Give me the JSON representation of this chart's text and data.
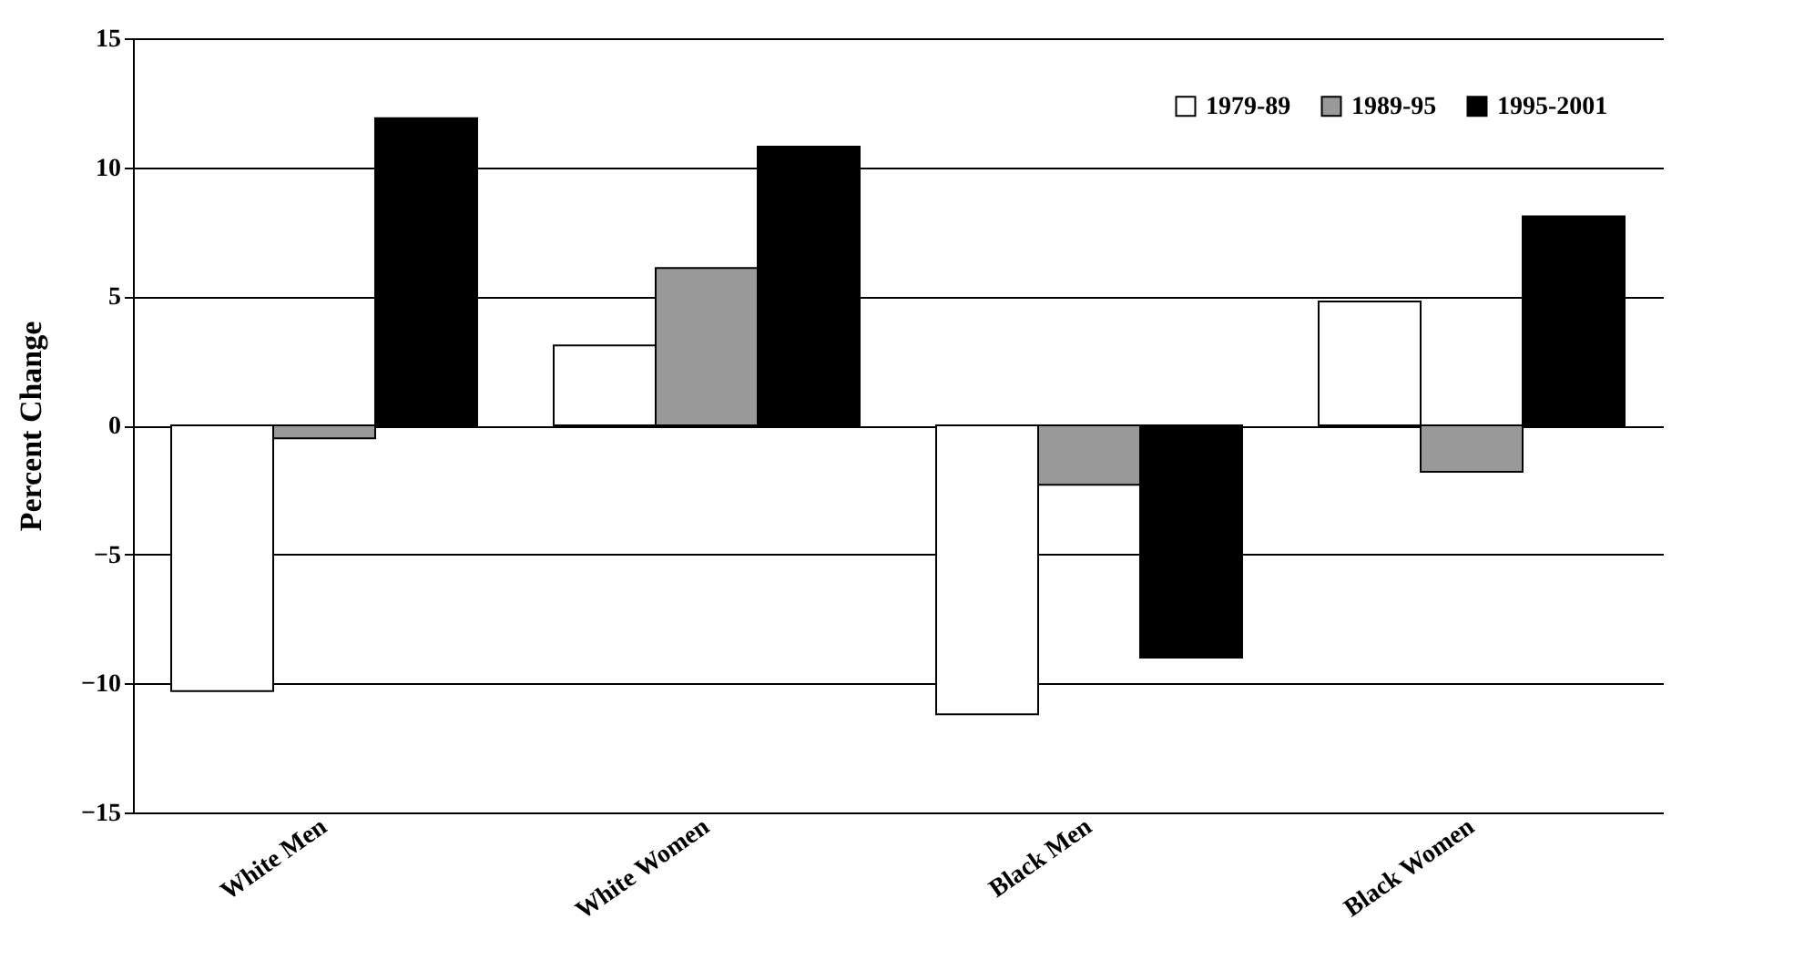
{
  "chart_data": {
    "type": "bar",
    "ylabel": "Percent Change",
    "categories": [
      "White Men",
      "White Women",
      "Black Men",
      "Black Women"
    ],
    "series": [
      {
        "name": "1979-89",
        "color": "#ffffff",
        "values": [
          -10.3,
          3.1,
          -11.2,
          4.8
        ]
      },
      {
        "name": "1989-95",
        "color": "#999999",
        "values": [
          -0.5,
          6.1,
          -2.3,
          -1.8
        ]
      },
      {
        "name": "1995-2001",
        "color": "#000000",
        "values": [
          11.9,
          10.8,
          -9.0,
          8.1
        ]
      }
    ],
    "ylim": [
      -15,
      15
    ],
    "yticks": [
      -15,
      -10,
      -5,
      0,
      5,
      10,
      15
    ],
    "grid": "y",
    "legend": "top right"
  }
}
